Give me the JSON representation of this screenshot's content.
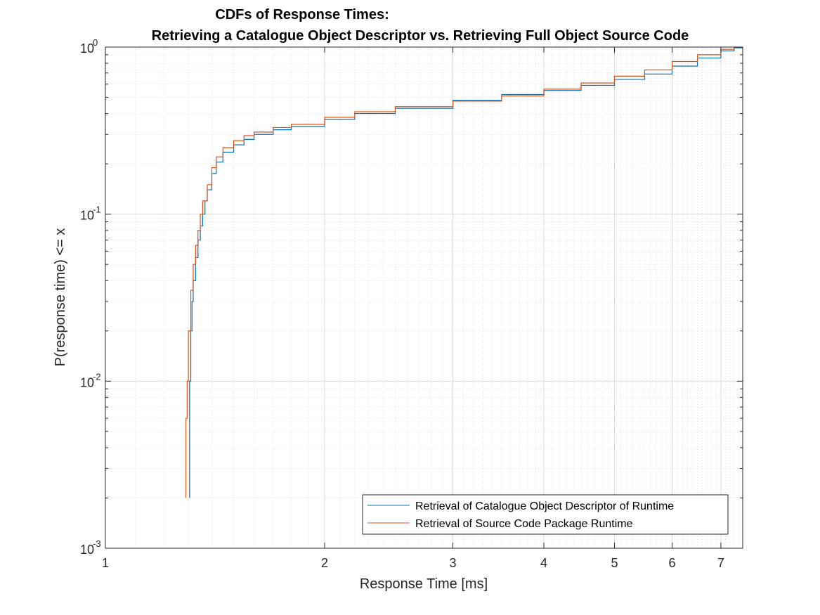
{
  "chart_data": {
    "type": "line",
    "title": "CDFs of Response Times:",
    "subtitle": "Retrieving a Catalogue Object Descriptor vs. Retrieving Full Object Source Code",
    "xlabel": "Response Time [ms]",
    "ylabel": "P(response time) <= x",
    "xscale": "log",
    "yscale": "log",
    "xlim": [
      1,
      7.5
    ],
    "ylim": [
      0.001,
      1
    ],
    "xticks": [
      1,
      2,
      3,
      4,
      5,
      6,
      7
    ],
    "xtick_labels": [
      "1",
      "2",
      "3",
      "4",
      "5",
      "6",
      "7"
    ],
    "yticks": [
      0.001,
      0.01,
      0.1,
      1
    ],
    "ytick_base": [
      "10",
      "10",
      "10",
      "10"
    ],
    "ytick_exp": [
      "-3",
      "-2",
      "-1",
      "0"
    ],
    "grid": true,
    "minor_grid": true,
    "legend_position": "bottom-right",
    "series": [
      {
        "name": "Retrieval of Catalogue Object Descriptor of Runtime",
        "color": "#0072BD",
        "x": [
          1.305,
          1.305,
          1.31,
          1.315,
          1.32,
          1.33,
          1.34,
          1.35,
          1.36,
          1.37,
          1.38,
          1.4,
          1.42,
          1.45,
          1.5,
          1.55,
          1.6,
          1.7,
          1.8,
          2.0,
          2.2,
          2.5,
          3.0,
          3.5,
          4.0,
          4.5,
          5.0,
          5.5,
          6.0,
          6.5,
          7.0,
          7.3,
          7.5
        ],
        "y": [
          0.002,
          0.01,
          0.02,
          0.03,
          0.04,
          0.055,
          0.07,
          0.085,
          0.1,
          0.12,
          0.14,
          0.175,
          0.205,
          0.235,
          0.26,
          0.28,
          0.3,
          0.32,
          0.335,
          0.37,
          0.4,
          0.43,
          0.48,
          0.52,
          0.55,
          0.59,
          0.64,
          0.69,
          0.77,
          0.86,
          0.95,
          0.99,
          1.0
        ]
      },
      {
        "name": "Retrieval of Source Code Package Runtime",
        "color": "#D95319",
        "x": [
          1.29,
          1.29,
          1.295,
          1.3,
          1.31,
          1.32,
          1.33,
          1.34,
          1.35,
          1.36,
          1.38,
          1.4,
          1.42,
          1.45,
          1.5,
          1.55,
          1.6,
          1.7,
          1.8,
          2.0,
          2.2,
          2.5,
          3.0,
          3.5,
          4.0,
          4.5,
          5.0,
          5.5,
          6.0,
          6.5,
          7.0,
          7.3,
          7.5
        ],
        "y": [
          0.002,
          0.006,
          0.01,
          0.02,
          0.035,
          0.05,
          0.065,
          0.08,
          0.1,
          0.12,
          0.15,
          0.19,
          0.22,
          0.25,
          0.275,
          0.295,
          0.31,
          0.33,
          0.345,
          0.38,
          0.41,
          0.44,
          0.475,
          0.51,
          0.56,
          0.61,
          0.67,
          0.73,
          0.82,
          0.9,
          0.97,
          1.0,
          1.0
        ]
      }
    ]
  }
}
